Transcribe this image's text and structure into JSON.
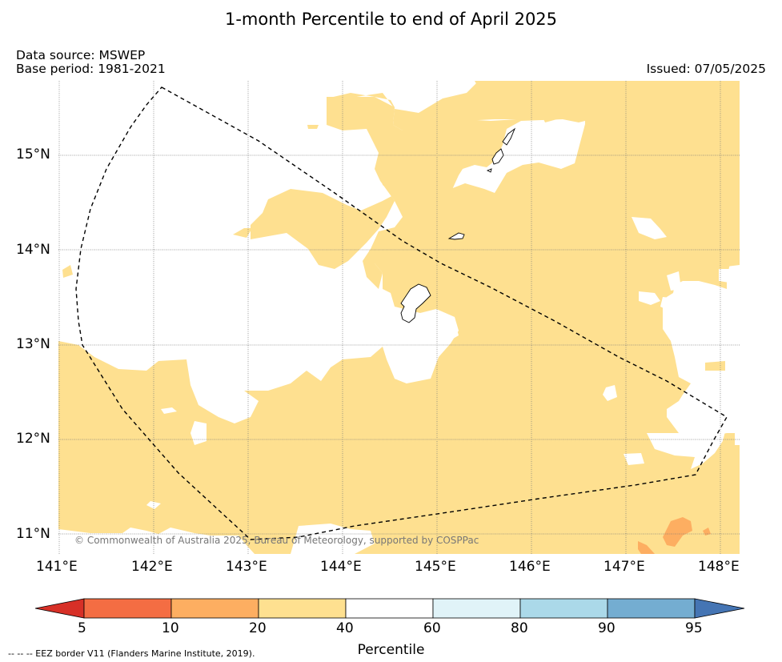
{
  "title": "1-month Percentile to end of April 2025",
  "data_source": "Data source: MSWEP",
  "base_period": "Base period: 1981-2021",
  "issued": "Issued: 07/05/2025",
  "copyright": "© Commonwealth of Australia 2025, Bureau of Meteorology, supported by COSPPac",
  "footnote": "--  --  -- EEZ border V11 (Flanders Marine Institute, 2019).",
  "lat_labels": [
    "15°N",
    "14°N",
    "13°N",
    "12°N",
    "11°N"
  ],
  "lon_labels": [
    "141°E",
    "142°E",
    "143°E",
    "144°E",
    "145°E",
    "146°E",
    "147°E",
    "148°E"
  ],
  "colorbar": {
    "title": "Percentile",
    "ticks": [
      "5",
      "10",
      "20",
      "40",
      "60",
      "80",
      "90",
      "95"
    ],
    "bins": [
      {
        "range": "<5",
        "color": "#d73027"
      },
      {
        "range": "5-10",
        "color": "#f46d43"
      },
      {
        "range": "10-20",
        "color": "#fdae61"
      },
      {
        "range": "20-40",
        "color": "#fee090"
      },
      {
        "range": "40-60",
        "color": "#ffffff"
      },
      {
        "range": "60-80",
        "color": "#e0f3f8"
      },
      {
        "range": "80-90",
        "color": "#abd9e9"
      },
      {
        "range": "90-95",
        "color": "#74add1"
      },
      {
        "range": ">95",
        "color": "#4575b4"
      }
    ]
  }
}
